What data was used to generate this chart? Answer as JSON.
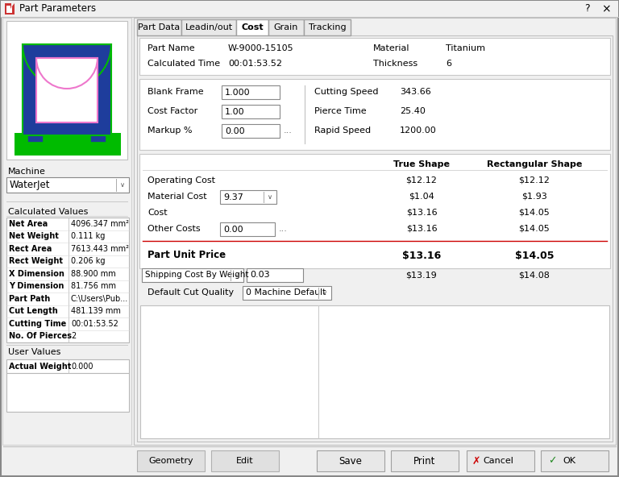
{
  "title": "Part Parameters",
  "tabs": [
    "Part Data",
    "Leadin/out",
    "Cost",
    "Grain",
    "Tracking"
  ],
  "active_tab": "Cost",
  "part_name": "W-9000-15105",
  "calculated_time": "00:01:53.52",
  "material": "Titanium",
  "thickness": "6",
  "blank_frame": "1.000",
  "cost_factor": "1.00",
  "markup": "0.00",
  "cutting_speed": "343.66",
  "pierce_time": "25.40",
  "rapid_speed": "1200.00",
  "true_shape_op_cost": "$12.12",
  "true_shape_mat_cost": "$1.04",
  "true_shape_cost": "$13.16",
  "true_shape_other": "$13.16",
  "true_shape_unit": "$13.16",
  "true_shape_shipping": "$13.19",
  "rect_shape_op_cost": "$12.12",
  "rect_shape_mat_cost": "$1.93",
  "rect_shape_cost": "$14.05",
  "rect_shape_other": "$14.05",
  "rect_shape_unit": "$14.05",
  "rect_shape_shipping": "$14.08",
  "material_cost_val": "9.37",
  "other_costs_val": "0.00",
  "shipping_cost_val": "0.03",
  "calc_values": [
    [
      "Net Area",
      "4096.347 mm²"
    ],
    [
      "Net Weight",
      "0.111 kg"
    ],
    [
      "Rect Area",
      "7613.443 mm²"
    ],
    [
      "Rect Weight",
      "0.206 kg"
    ],
    [
      "X Dimension",
      "88.900 mm"
    ],
    [
      "Y Dimension",
      "81.756 mm"
    ],
    [
      "Part Path",
      "C:\\Users\\Pub..."
    ],
    [
      "Cut Length",
      "481.139 mm"
    ],
    [
      "Cutting Time",
      "00:01:53.52"
    ],
    [
      "No. Of Pierces",
      "2"
    ]
  ],
  "user_values": [
    [
      "Actual Weight",
      "0.000"
    ]
  ],
  "machine": "WaterJet",
  "shape_blue": "#1e3d9c",
  "shape_green": "#00bb00",
  "shape_pink": "#ee77cc",
  "dialog_bg": "#f0f0f0",
  "panel_bg": "#f0f0f0",
  "white": "#ffffff",
  "border_color": "#c0c0c0",
  "tab_active_bg": "#ffffff",
  "tab_inactive_bg": "#e8e8e8",
  "input_bg": "#ffffff",
  "btn_bg": "#e0e0e0",
  "text_color": "#000000",
  "dim_text": "#606060",
  "red_line": "#cc0000",
  "cancel_red": "#cc0000",
  "ok_green": "#228822"
}
